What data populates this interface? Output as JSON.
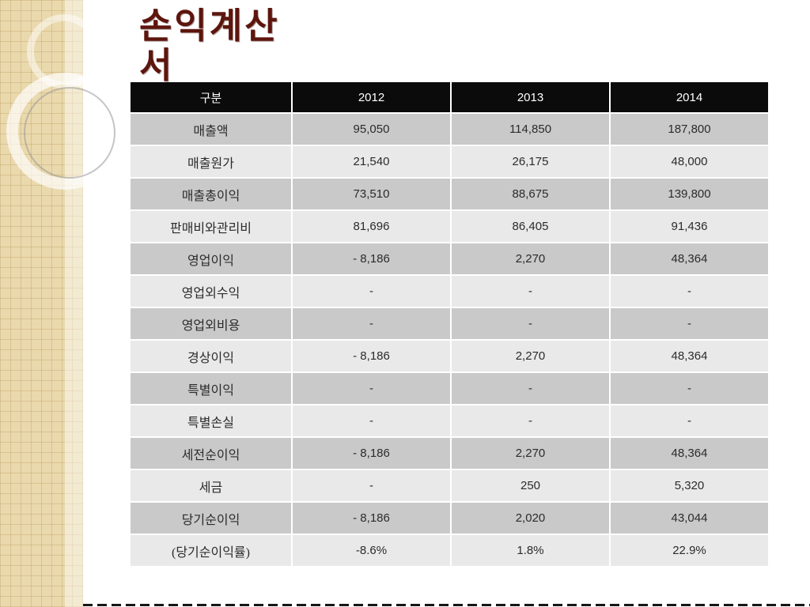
{
  "slide": {
    "title": "손익계산서",
    "title_color": "#5d150d",
    "header_bg": "#0b0b0b",
    "row_color_odd": "#c9c9c9",
    "row_color_even": "#e9e9e9",
    "band_color": "#ead9ad"
  },
  "table": {
    "headers": [
      "구분",
      "2012",
      "2013",
      "2014"
    ],
    "rows": [
      {
        "label": "매출액",
        "values": [
          "95,050",
          "114,850",
          "187,800"
        ]
      },
      {
        "label": "매출원가",
        "values": [
          "21,540",
          "26,175",
          "48,000"
        ]
      },
      {
        "label": "매출총이익",
        "values": [
          "73,510",
          "88,675",
          "139,800"
        ]
      },
      {
        "label": "판매비와관리비",
        "values": [
          "81,696",
          "86,405",
          "91,436"
        ]
      },
      {
        "label": "영업이익",
        "values": [
          "- 8,186",
          "2,270",
          "48,364"
        ]
      },
      {
        "label": "영업외수익",
        "values": [
          "-",
          "-",
          "-"
        ]
      },
      {
        "label": "영업외비용",
        "values": [
          "-",
          "-",
          "-"
        ]
      },
      {
        "label": "경상이익",
        "values": [
          "- 8,186",
          "2,270",
          "48,364"
        ]
      },
      {
        "label": "특별이익",
        "values": [
          "-",
          "-",
          "-"
        ]
      },
      {
        "label": "특별손실",
        "values": [
          "-",
          "-",
          "-"
        ]
      },
      {
        "label": "세전순이익",
        "values": [
          "- 8,186",
          "2,270",
          "48,364"
        ]
      },
      {
        "label": "세금",
        "values": [
          "-",
          "250",
          "5,320"
        ]
      },
      {
        "label": "당기순이익",
        "values": [
          "- 8,186",
          "2,020",
          "43,044"
        ]
      },
      {
        "label": "(당기순이익률)",
        "values": [
          "-8.6%",
          "1.8%",
          "22.9%"
        ]
      }
    ]
  }
}
